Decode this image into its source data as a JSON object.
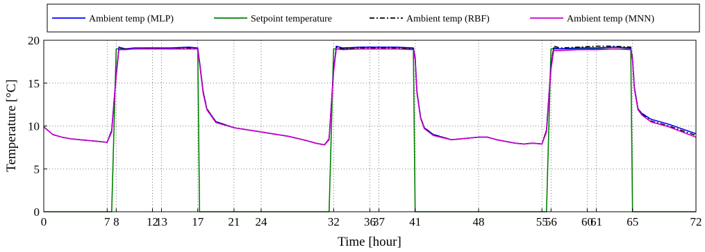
{
  "chart_data": {
    "type": "line",
    "xlabel": "Time [hour]",
    "ylabel": "Temperature [°C]",
    "xlim": [
      0,
      72
    ],
    "ylim": [
      0,
      20
    ],
    "grid": true,
    "legend_placement": "top",
    "x_ticks": [
      0,
      7,
      8,
      12,
      13,
      17,
      21,
      24,
      32,
      36,
      37,
      41,
      48,
      55,
      56,
      60,
      61,
      65,
      72
    ],
    "x_tick_labels": [
      "0",
      "7",
      "8",
      "12",
      "13",
      "17",
      "21",
      "24",
      "32",
      "36",
      "37",
      "41",
      "48",
      "55",
      "56",
      "60",
      "61",
      "65",
      "72"
    ],
    "y_ticks": [
      0,
      5,
      10,
      15,
      20
    ],
    "y_tick_labels": [
      "0",
      "5",
      "10",
      "15",
      "20"
    ],
    "x": [
      0,
      1,
      2,
      3,
      4,
      5,
      6,
      7,
      7.5,
      8,
      8.3,
      9,
      10,
      12,
      14,
      16,
      17,
      17.2,
      17.6,
      18,
      19,
      21,
      24,
      27,
      29,
      30,
      31,
      31.5,
      32,
      32.3,
      33,
      35,
      37,
      39,
      40.8,
      41,
      41.2,
      41.6,
      42,
      43,
      45,
      47,
      48,
      49,
      50,
      51,
      52,
      53,
      54,
      55,
      55.5,
      56,
      56.3,
      57,
      59,
      61,
      63,
      64.8,
      65,
      65.2,
      65.6,
      66,
      67,
      69,
      72
    ],
    "series": [
      {
        "name": "Ambient temp (MLP)",
        "color": "#0000ff",
        "values": [
          9.9,
          9.0,
          8.7,
          8.5,
          8.4,
          8.3,
          8.2,
          8.1,
          9.5,
          16.0,
          19.2,
          19.0,
          19.1,
          19.1,
          19.1,
          19.2,
          19.1,
          17.5,
          14.0,
          12.0,
          10.5,
          9.8,
          9.3,
          8.8,
          8.3,
          8.0,
          7.8,
          8.5,
          16.5,
          19.3,
          19.1,
          19.2,
          19.2,
          19.2,
          19.1,
          18.0,
          14.0,
          11.0,
          9.8,
          9.0,
          8.4,
          8.6,
          8.7,
          8.7,
          8.4,
          8.2,
          8.0,
          7.9,
          8.0,
          7.9,
          9.5,
          17.0,
          19.1,
          19.0,
          19.1,
          19.1,
          19.2,
          19.1,
          17.8,
          14.5,
          12.0,
          11.5,
          10.8,
          10.2,
          9.1
        ]
      },
      {
        "name": "Setpoint temperature",
        "color": "#008000",
        "values": [
          0,
          0,
          0,
          0,
          0,
          0,
          0,
          0,
          0,
          19,
          19,
          19,
          19,
          19,
          19,
          19,
          19,
          0,
          0,
          0,
          0,
          0,
          0,
          0,
          0,
          0,
          0,
          0,
          19,
          19,
          19,
          19,
          19,
          19,
          19,
          0,
          0,
          0,
          0,
          0,
          0,
          0,
          0,
          0,
          0,
          0,
          0,
          0,
          0,
          0,
          0,
          19,
          19,
          19,
          19,
          19,
          19,
          19,
          0,
          0,
          0,
          0,
          0,
          0,
          0
        ]
      },
      {
        "name": "Ambient temp (RBF)",
        "color": "#000000",
        "dash": "dashdot",
        "values": [
          9.9,
          9.0,
          8.7,
          8.5,
          8.4,
          8.3,
          8.2,
          8.1,
          9.4,
          16.0,
          19.0,
          19.0,
          19.0,
          19.1,
          19.0,
          19.1,
          19.0,
          17.4,
          14.0,
          12.0,
          10.5,
          9.8,
          9.3,
          8.8,
          8.3,
          8.0,
          7.8,
          8.5,
          16.5,
          19.2,
          19.0,
          19.1,
          19.1,
          19.1,
          19.0,
          17.9,
          14.0,
          11.0,
          9.8,
          9.0,
          8.4,
          8.6,
          8.7,
          8.7,
          8.4,
          8.2,
          8.0,
          7.9,
          8.0,
          7.9,
          9.5,
          17.0,
          19.3,
          19.1,
          19.2,
          19.3,
          19.3,
          19.2,
          17.8,
          14.5,
          12.0,
          11.4,
          10.6,
          10.0,
          8.9
        ]
      },
      {
        "name": "Ambient temp (MNN)",
        "color": "#cc00cc",
        "values": [
          9.9,
          9.0,
          8.7,
          8.5,
          8.4,
          8.3,
          8.2,
          8.1,
          9.3,
          15.8,
          18.9,
          18.9,
          19.0,
          19.0,
          19.0,
          19.0,
          19.0,
          17.3,
          13.8,
          11.9,
          10.4,
          9.8,
          9.3,
          8.8,
          8.3,
          8.0,
          7.8,
          8.4,
          16.3,
          19.0,
          18.9,
          19.0,
          19.0,
          19.0,
          18.9,
          17.7,
          13.8,
          10.9,
          9.7,
          8.9,
          8.4,
          8.6,
          8.7,
          8.7,
          8.4,
          8.2,
          8.0,
          7.9,
          8.0,
          7.9,
          9.3,
          16.6,
          18.8,
          18.8,
          18.9,
          18.9,
          19.0,
          18.9,
          17.6,
          14.3,
          11.9,
          11.3,
          10.5,
          9.9,
          8.7
        ]
      }
    ]
  }
}
